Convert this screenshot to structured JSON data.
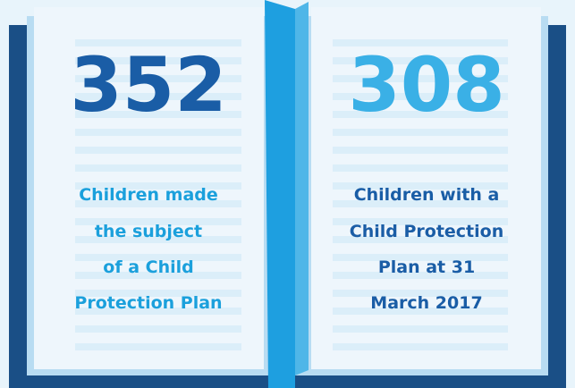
{
  "left": {
    "number": "352",
    "lines": [
      "Children made",
      "the subject",
      "of a Child",
      "Protection Plan"
    ]
  },
  "right": {
    "number": "308",
    "lines": [
      "Children with a",
      "Child Protection",
      "Plan at 31",
      "March 2017"
    ]
  }
}
